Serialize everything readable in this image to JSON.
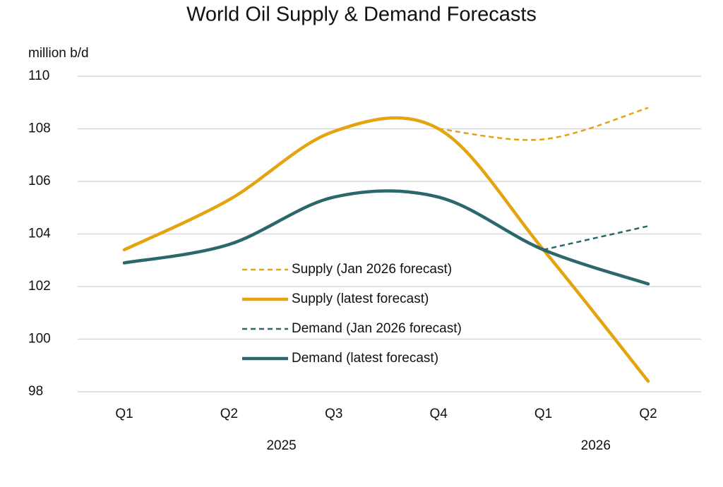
{
  "chart_data": {
    "type": "line",
    "title": "World Oil Supply & Demand Forecasts",
    "y_label": "million b/d",
    "categories": [
      "Q1",
      "Q2",
      "Q3",
      "Q4",
      "Q1",
      "Q2"
    ],
    "groups": [
      {
        "label": "2025",
        "count": 4
      },
      {
        "label": "2026",
        "count": 2
      }
    ],
    "series": [
      {
        "name": "Supply (Jan 2026 forecast)",
        "color": "#e3a40f",
        "dashed": true,
        "values": [
          null,
          null,
          null,
          108.0,
          107.6,
          108.8
        ]
      },
      {
        "name": "Supply (latest forecast)",
        "color": "#e3a40f",
        "dashed": false,
        "values": [
          103.4,
          105.3,
          107.9,
          108.0,
          103.4,
          98.4
        ]
      },
      {
        "name": "Demand (Jan 2026 forecast)",
        "color": "#2b676b",
        "dashed": true,
        "values": [
          null,
          null,
          null,
          null,
          103.4,
          104.3
        ]
      },
      {
        "name": "Demand (latest forecast)",
        "color": "#2b676b",
        "dashed": false,
        "values": [
          102.9,
          103.6,
          105.4,
          105.4,
          103.4,
          102.1
        ]
      }
    ],
    "ylim": [
      98,
      110
    ],
    "yticks": [
      98,
      100,
      102,
      104,
      106,
      108,
      110
    ],
    "grid": true,
    "smooth": true,
    "legend": "center"
  }
}
